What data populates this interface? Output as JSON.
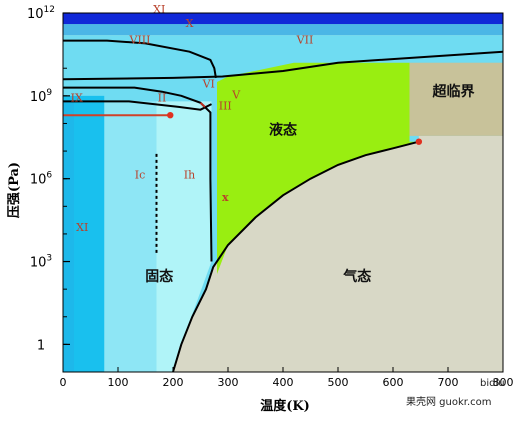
{
  "chart_data": {
    "type": "area",
    "title": "",
    "xlabel": "温度(K)",
    "ylabel": "压强(Pa)",
    "xlim": [
      0,
      800
    ],
    "ylim_log10": [
      -1,
      12
    ],
    "x_scale": "linear",
    "y_scale": "log",
    "x_ticks": [
      "0",
      "100",
      "200",
      "300",
      "400",
      "500",
      "600",
      "700",
      "800"
    ],
    "y_ticks": [
      {
        "base": "10",
        "exp": "12",
        "value": 12
      },
      {
        "base": "10",
        "exp": "9",
        "value": 9
      },
      {
        "base": "10",
        "exp": "6",
        "value": 6
      },
      {
        "base": "10",
        "exp": "3",
        "value": 3
      },
      {
        "base": "1",
        "exp": "",
        "value": 0
      }
    ],
    "grid": false,
    "colors": {
      "ice_Ih": "#b0f4f8",
      "ice_Ic": "#8ee6f5",
      "ice_XI": "#19c0ee",
      "ice_high": "#6fdcf2",
      "ice_X": "#4bb6e6",
      "ice_XI_top": "#1028d8",
      "liquid": "#99ee11",
      "vapor": "#d8d8c6",
      "supercritical": "#c8c29a",
      "boundary": "#000000",
      "point": "#e03020",
      "dashed": "#000000"
    },
    "region_labels": [
      {
        "text": "XI",
        "x": 175,
        "log_p": 12.0
      },
      {
        "text": "X",
        "x": 230,
        "log_p": 11.5
      },
      {
        "text": "VIII",
        "x": 140,
        "log_p": 10.9
      },
      {
        "text": "VII",
        "x": 440,
        "log_p": 10.9
      },
      {
        "text": "IX",
        "x": 25,
        "log_p": 8.8
      },
      {
        "text": "II",
        "x": 180,
        "log_p": 8.8
      },
      {
        "text": "VI",
        "x": 265,
        "log_p": 9.3
      },
      {
        "text": "V",
        "x": 315,
        "log_p": 8.9
      },
      {
        "text": "III",
        "x": 295,
        "log_p": 8.5
      },
      {
        "text": "Ic",
        "x": 140,
        "log_p": 6.0
      },
      {
        "text": "Ih",
        "x": 230,
        "log_p": 6.0
      },
      {
        "text": "XI",
        "x": 35,
        "log_p": 4.1
      },
      {
        "text": "x",
        "x": 295,
        "log_p": 5.2,
        "marker": true
      }
    ],
    "phase_labels": [
      {
        "text": "液态",
        "x": 400,
        "log_p": 7.6
      },
      {
        "text": "固态",
        "x": 175,
        "log_p": 2.3
      },
      {
        "text": "气态",
        "x": 535,
        "log_p": 2.3
      },
      {
        "text": "超临界",
        "x": 710,
        "log_p": 9.0
      }
    ],
    "key_points": [
      {
        "name": "critical",
        "x": 647,
        "log_p": 7.34
      },
      {
        "name": "ice-II-triple",
        "x": 195,
        "log_p": 8.3
      }
    ]
  },
  "credit": {
    "left": "bidlu",
    "right": "果壳网 guokr.com"
  }
}
